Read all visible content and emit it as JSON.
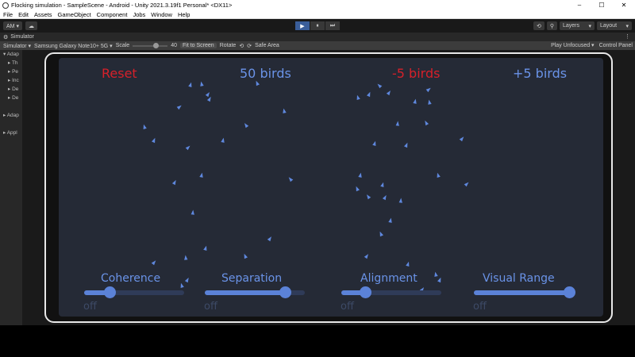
{
  "window": {
    "title": "Flocking simulation - SampleScene - Android - Unity 2021.3.19f1 Personal* <DX11>",
    "controls": [
      "–",
      "☐",
      "✕"
    ]
  },
  "menu": [
    "File",
    "Edit",
    "Assets",
    "GameObject",
    "Component",
    "Jobs",
    "Window",
    "Help"
  ],
  "toolbar": {
    "account": "AM ▾",
    "cloud": "☁",
    "play": "▶",
    "pause": "⏸",
    "step": "⏭",
    "history": "⟲",
    "search": "⚲",
    "layers": "Layers",
    "layout": "Layout"
  },
  "tab": {
    "label": "Simulator",
    "menu": "⋮"
  },
  "simbar": {
    "mode": "Simulator ▾",
    "device": "Samsung Galaxy Note10+ 5G ▾",
    "scale_label": "Scale",
    "scale_value": "40",
    "fit": "Fit to Screen",
    "rotate": "Rotate",
    "safe_area": "Safe Area",
    "play_mode": "Play Unfocused ▾",
    "control_panel": "Control Panel"
  },
  "hierarchy": [
    {
      "label": "▾ Adap",
      "level": 1
    },
    {
      "label": "▸ Th",
      "level": 2
    },
    {
      "label": "▸ Pe",
      "level": 2
    },
    {
      "label": "▸ Inc",
      "level": 2
    },
    {
      "label": "▸ De",
      "level": 2
    },
    {
      "label": "▸ De",
      "level": 2
    },
    {
      "label": "",
      "level": 1
    },
    {
      "label": "▸ Adap",
      "level": 1
    },
    {
      "label": "",
      "level": 1
    },
    {
      "label": "▸ Appl",
      "level": 1
    }
  ],
  "game": {
    "reset": "Reset",
    "bird_count": "50 birds",
    "minus": "-5 birds",
    "plus": "+5 birds",
    "sliders": [
      {
        "label": "Coherence",
        "off": "off",
        "value": 0.25
      },
      {
        "label": "Separation",
        "off": "off",
        "value": 0.8
      },
      {
        "label": "Alignment",
        "off": "off",
        "value": 0.24
      },
      {
        "label": "Visual Range",
        "off": "off",
        "value": 0.95
      }
    ],
    "colors": {
      "red": "#d6202a",
      "blue": "#6a93e8",
      "screen": "#252a36"
    }
  }
}
